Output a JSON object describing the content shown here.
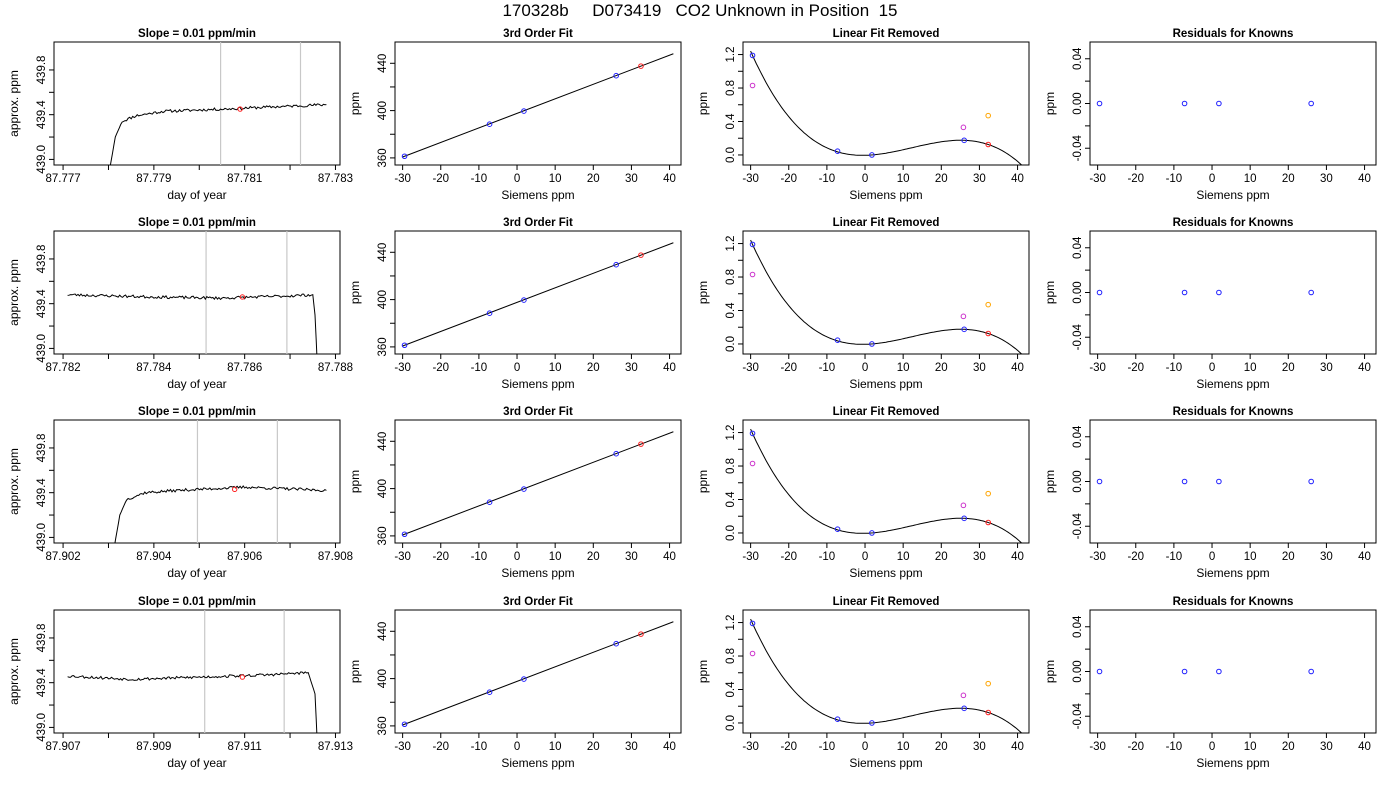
{
  "page_title": "170328b     D073419   CO2 Unknown in Position  15",
  "chart_data": [
    {
      "type": "line",
      "panel": "trace",
      "title": "Slope =  0.01  ppm/min",
      "xlabel": "day of year",
      "ylabel": "approx. ppm",
      "xlim": [
        87.7768,
        87.7831
      ],
      "ylim": [
        438.95,
        440.05
      ],
      "xticks": [
        87.777,
        87.779,
        87.781,
        87.783
      ],
      "xticks_minor": [
        87.778,
        87.78,
        87.782
      ],
      "yticks": [
        439.0,
        439.4,
        439.8
      ],
      "yticks_minor": [
        439.2,
        439.6
      ],
      "markers_x": [
        87.78047,
        87.78223
      ],
      "sample_point": {
        "x": 87.7809,
        "y": 439.45
      },
      "trace_key": [
        [
          87.778,
          438.85
        ],
        [
          87.77815,
          439.2
        ],
        [
          87.7783,
          439.34
        ],
        [
          87.7786,
          439.39
        ],
        [
          87.7792,
          439.43
        ],
        [
          87.7805,
          439.45
        ],
        [
          87.7828,
          439.49
        ]
      ],
      "trace_mode": "rise",
      "noise_seed": 11
    },
    {
      "type": "scatter",
      "panel": "fit",
      "title": "3rd Order Fit",
      "xlabel": "Siemens ppm",
      "ylabel": "ppm",
      "xlim": [
        -32,
        43
      ],
      "ylim": [
        354,
        458
      ],
      "xticks": [
        -30,
        -20,
        -10,
        0,
        10,
        20,
        30,
        40
      ],
      "yticks": [
        360,
        400,
        440
      ],
      "yticks_minor": [
        380,
        420
      ],
      "line_x": [
        -30,
        41
      ],
      "points": [
        {
          "x": -29.5,
          "y": 361.4,
          "color": "#2020ff"
        },
        {
          "x": -7.2,
          "y": 388.5,
          "color": "#2020ff"
        },
        {
          "x": 1.8,
          "y": 399.6,
          "color": "#2020ff"
        },
        {
          "x": 26,
          "y": 429.5,
          "color": "#2020ff"
        },
        {
          "x": 32.5,
          "y": 437.6,
          "color": "#ff2020"
        }
      ]
    },
    {
      "type": "scatter",
      "panel": "linrem",
      "title": "Linear Fit Removed",
      "xlabel": "Siemens ppm",
      "ylabel": "ppm",
      "xlim": [
        -32,
        43
      ],
      "ylim": [
        -0.12,
        1.35
      ],
      "xticks": [
        -30,
        -20,
        -10,
        0,
        10,
        20,
        30,
        40
      ],
      "yticks": [
        0.0,
        0.4,
        0.8,
        1.2
      ],
      "yticks_minor": [
        0.2,
        0.6,
        1.0
      ],
      "curve_x": [
        -30,
        41
      ],
      "points": [
        {
          "x": -29.5,
          "y": 1.19,
          "color": "#2020ff"
        },
        {
          "x": -29.5,
          "y": 0.83,
          "color": "#cc33cc"
        },
        {
          "x": -7.2,
          "y": 0.045,
          "color": "#2020ff"
        },
        {
          "x": 1.8,
          "y": 0.0,
          "color": "#2020ff"
        },
        {
          "x": 26,
          "y": 0.175,
          "color": "#2020ff"
        },
        {
          "x": 25.8,
          "y": 0.33,
          "color": "#cc33cc"
        },
        {
          "x": 32.3,
          "y": 0.47,
          "color": "#ffa500"
        },
        {
          "x": 32.3,
          "y": 0.125,
          "color": "#ff2020"
        }
      ]
    },
    {
      "type": "scatter",
      "panel": "resid",
      "title": "Residuals for Knowns",
      "xlabel": "Siemens ppm",
      "ylabel": "ppm",
      "xlim": [
        -32,
        43
      ],
      "ylim": [
        -0.055,
        0.055
      ],
      "xticks": [
        -30,
        -20,
        -10,
        0,
        10,
        20,
        30,
        40
      ],
      "yticks": [
        -0.04,
        0.0,
        0.04
      ],
      "yticks_minor": [
        -0.02,
        0.02
      ],
      "points": [
        {
          "x": -29.5,
          "y": 0.0,
          "color": "#2020ff"
        },
        {
          "x": -7.2,
          "y": 0.0,
          "color": "#2020ff"
        },
        {
          "x": 1.8,
          "y": 0.0,
          "color": "#2020ff"
        },
        {
          "x": 26,
          "y": 0.0,
          "color": "#2020ff"
        }
      ]
    },
    {
      "type": "line",
      "panel": "trace",
      "title": "Slope =  0.01  ppm/min",
      "xlabel": "day of year",
      "ylabel": "approx. ppm",
      "xlim": [
        87.7818,
        87.7881
      ],
      "ylim": [
        438.95,
        440.05
      ],
      "xticks": [
        87.782,
        87.784,
        87.786,
        87.788
      ],
      "xticks_minor": [
        87.783,
        87.785,
        87.787
      ],
      "yticks": [
        439.0,
        439.4,
        439.8
      ],
      "yticks_minor": [
        439.2,
        439.6
      ],
      "markers_x": [
        87.78515,
        87.78693
      ],
      "sample_point": {
        "x": 87.78595,
        "y": 439.46
      },
      "trace_key": [
        [
          87.7821,
          439.48
        ],
        [
          87.784,
          439.46
        ],
        [
          87.7855,
          439.45
        ],
        [
          87.787,
          439.47
        ],
        [
          87.7875,
          439.48
        ],
        [
          87.78755,
          439.3
        ],
        [
          87.7876,
          438.85
        ]
      ],
      "trace_mode": "flat",
      "noise_seed": 23
    },
    {
      "type": "scatter",
      "panel": "fit",
      "title": "3rd Order Fit",
      "xlabel": "Siemens ppm",
      "ylabel": "ppm",
      "xlim": [
        -32,
        43
      ],
      "ylim": [
        354,
        458
      ],
      "xticks": [
        -30,
        -20,
        -10,
        0,
        10,
        20,
        30,
        40
      ],
      "yticks": [
        360,
        400,
        440
      ],
      "yticks_minor": [
        380,
        420
      ],
      "line_x": [
        -30,
        41
      ],
      "points": [
        {
          "x": -29.5,
          "y": 361.4,
          "color": "#2020ff"
        },
        {
          "x": -7.2,
          "y": 388.5,
          "color": "#2020ff"
        },
        {
          "x": 1.8,
          "y": 399.6,
          "color": "#2020ff"
        },
        {
          "x": 26,
          "y": 429.5,
          "color": "#2020ff"
        },
        {
          "x": 32.5,
          "y": 437.6,
          "color": "#ff2020"
        }
      ]
    },
    {
      "type": "scatter",
      "panel": "linrem",
      "title": "Linear Fit Removed",
      "xlabel": "Siemens ppm",
      "ylabel": "ppm",
      "xlim": [
        -32,
        43
      ],
      "ylim": [
        -0.12,
        1.35
      ],
      "xticks": [
        -30,
        -20,
        -10,
        0,
        10,
        20,
        30,
        40
      ],
      "yticks": [
        0.0,
        0.4,
        0.8,
        1.2
      ],
      "yticks_minor": [
        0.2,
        0.6,
        1.0
      ],
      "curve_x": [
        -30,
        41
      ],
      "points": [
        {
          "x": -29.5,
          "y": 1.19,
          "color": "#2020ff"
        },
        {
          "x": -29.5,
          "y": 0.83,
          "color": "#cc33cc"
        },
        {
          "x": -7.2,
          "y": 0.045,
          "color": "#2020ff"
        },
        {
          "x": 1.8,
          "y": 0.0,
          "color": "#2020ff"
        },
        {
          "x": 26,
          "y": 0.175,
          "color": "#2020ff"
        },
        {
          "x": 25.8,
          "y": 0.33,
          "color": "#cc33cc"
        },
        {
          "x": 32.3,
          "y": 0.47,
          "color": "#ffa500"
        },
        {
          "x": 32.3,
          "y": 0.125,
          "color": "#ff2020"
        }
      ]
    },
    {
      "type": "scatter",
      "panel": "resid",
      "title": "Residuals for Knowns",
      "xlabel": "Siemens ppm",
      "ylabel": "ppm",
      "xlim": [
        -32,
        43
      ],
      "ylim": [
        -0.055,
        0.055
      ],
      "xticks": [
        -30,
        -20,
        -10,
        0,
        10,
        20,
        30,
        40
      ],
      "yticks": [
        -0.04,
        0.0,
        0.04
      ],
      "yticks_minor": [
        -0.02,
        0.02
      ],
      "points": [
        {
          "x": -29.5,
          "y": 0.0,
          "color": "#2020ff"
        },
        {
          "x": -7.2,
          "y": 0.0,
          "color": "#2020ff"
        },
        {
          "x": 1.8,
          "y": 0.0,
          "color": "#2020ff"
        },
        {
          "x": 26,
          "y": 0.0,
          "color": "#2020ff"
        }
      ]
    },
    {
      "type": "line",
      "panel": "trace",
      "title": "Slope =  0.01  ppm/min",
      "xlabel": "day of year",
      "ylabel": "approx. ppm",
      "xlim": [
        87.9018,
        87.9081
      ],
      "ylim": [
        438.95,
        440.05
      ],
      "xticks": [
        87.902,
        87.904,
        87.906,
        87.908
      ],
      "xticks_minor": [
        87.903,
        87.905,
        87.907
      ],
      "yticks": [
        439.0,
        439.4,
        439.8
      ],
      "yticks_minor": [
        439.2,
        439.6
      ],
      "markers_x": [
        87.90496,
        87.90672
      ],
      "sample_point": {
        "x": 87.90578,
        "y": 439.43
      },
      "trace_key": [
        [
          87.9031,
          438.85
        ],
        [
          87.90325,
          439.2
        ],
        [
          87.9034,
          439.34
        ],
        [
          87.9038,
          439.4
        ],
        [
          87.9045,
          439.42
        ],
        [
          87.906,
          439.45
        ],
        [
          87.9078,
          439.42
        ]
      ],
      "trace_mode": "rise",
      "noise_seed": 37
    },
    {
      "type": "scatter",
      "panel": "fit",
      "title": "3rd Order Fit",
      "xlabel": "Siemens ppm",
      "ylabel": "ppm",
      "xlim": [
        -32,
        43
      ],
      "ylim": [
        354,
        458
      ],
      "xticks": [
        -30,
        -20,
        -10,
        0,
        10,
        20,
        30,
        40
      ],
      "yticks": [
        360,
        400,
        440
      ],
      "yticks_minor": [
        380,
        420
      ],
      "line_x": [
        -30,
        41
      ],
      "points": [
        {
          "x": -29.5,
          "y": 361.4,
          "color": "#2020ff"
        },
        {
          "x": -7.2,
          "y": 388.5,
          "color": "#2020ff"
        },
        {
          "x": 1.8,
          "y": 399.6,
          "color": "#2020ff"
        },
        {
          "x": 26,
          "y": 429.5,
          "color": "#2020ff"
        },
        {
          "x": 32.5,
          "y": 437.6,
          "color": "#ff2020"
        }
      ]
    },
    {
      "type": "scatter",
      "panel": "linrem",
      "title": "Linear Fit Removed",
      "xlabel": "Siemens ppm",
      "ylabel": "ppm",
      "xlim": [
        -32,
        43
      ],
      "ylim": [
        -0.12,
        1.35
      ],
      "xticks": [
        -30,
        -20,
        -10,
        0,
        10,
        20,
        30,
        40
      ],
      "yticks": [
        0.0,
        0.4,
        0.8,
        1.2
      ],
      "yticks_minor": [
        0.2,
        0.6,
        1.0
      ],
      "curve_x": [
        -30,
        41
      ],
      "points": [
        {
          "x": -29.5,
          "y": 1.19,
          "color": "#2020ff"
        },
        {
          "x": -29.5,
          "y": 0.83,
          "color": "#cc33cc"
        },
        {
          "x": -7.2,
          "y": 0.045,
          "color": "#2020ff"
        },
        {
          "x": 1.8,
          "y": 0.0,
          "color": "#2020ff"
        },
        {
          "x": 26,
          "y": 0.175,
          "color": "#2020ff"
        },
        {
          "x": 25.8,
          "y": 0.33,
          "color": "#cc33cc"
        },
        {
          "x": 32.3,
          "y": 0.47,
          "color": "#ffa500"
        },
        {
          "x": 32.3,
          "y": 0.125,
          "color": "#ff2020"
        }
      ]
    },
    {
      "type": "scatter",
      "panel": "resid",
      "title": "Residuals for Knowns",
      "xlabel": "Siemens ppm",
      "ylabel": "ppm",
      "xlim": [
        -32,
        43
      ],
      "ylim": [
        -0.055,
        0.055
      ],
      "xticks": [
        -30,
        -20,
        -10,
        0,
        10,
        20,
        30,
        40
      ],
      "yticks": [
        -0.04,
        0.0,
        0.04
      ],
      "yticks_minor": [
        -0.02,
        0.02
      ],
      "points": [
        {
          "x": -29.5,
          "y": 0.0,
          "color": "#2020ff"
        },
        {
          "x": -7.2,
          "y": 0.0,
          "color": "#2020ff"
        },
        {
          "x": 1.8,
          "y": 0.0,
          "color": "#2020ff"
        },
        {
          "x": 26,
          "y": 0.0,
          "color": "#2020ff"
        }
      ]
    },
    {
      "type": "line",
      "panel": "trace",
      "title": "Slope =  0.01  ppm/min",
      "xlabel": "day of year",
      "ylabel": "approx. ppm",
      "xlim": [
        87.9068,
        87.9131
      ],
      "ylim": [
        438.95,
        440.05
      ],
      "xticks": [
        87.907,
        87.909,
        87.911,
        87.913
      ],
      "xticks_minor": [
        87.908,
        87.91,
        87.912
      ],
      "yticks": [
        439.0,
        439.4,
        439.8
      ],
      "yticks_minor": [
        439.2,
        439.6
      ],
      "markers_x": [
        87.91012,
        87.91187
      ],
      "sample_point": {
        "x": 87.91095,
        "y": 439.45
      },
      "trace_key": [
        [
          87.9071,
          439.46
        ],
        [
          87.9085,
          439.43
        ],
        [
          87.91,
          439.45
        ],
        [
          87.9115,
          439.47
        ],
        [
          87.9124,
          439.49
        ],
        [
          87.91255,
          439.3
        ],
        [
          87.9126,
          438.85
        ]
      ],
      "trace_mode": "flat",
      "noise_seed": 53
    },
    {
      "type": "scatter",
      "panel": "fit",
      "title": "3rd Order Fit",
      "xlabel": "Siemens ppm",
      "ylabel": "ppm",
      "xlim": [
        -32,
        43
      ],
      "ylim": [
        354,
        458
      ],
      "xticks": [
        -30,
        -20,
        -10,
        0,
        10,
        20,
        30,
        40
      ],
      "yticks": [
        360,
        400,
        440
      ],
      "yticks_minor": [
        380,
        420
      ],
      "line_x": [
        -30,
        41
      ],
      "points": [
        {
          "x": -29.5,
          "y": 361.4,
          "color": "#2020ff"
        },
        {
          "x": -7.2,
          "y": 388.5,
          "color": "#2020ff"
        },
        {
          "x": 1.8,
          "y": 399.6,
          "color": "#2020ff"
        },
        {
          "x": 26,
          "y": 429.5,
          "color": "#2020ff"
        },
        {
          "x": 32.5,
          "y": 437.6,
          "color": "#ff2020"
        }
      ]
    },
    {
      "type": "scatter",
      "panel": "linrem",
      "title": "Linear Fit Removed",
      "xlabel": "Siemens ppm",
      "ylabel": "ppm",
      "xlim": [
        -32,
        43
      ],
      "ylim": [
        -0.12,
        1.35
      ],
      "xticks": [
        -30,
        -20,
        -10,
        0,
        10,
        20,
        30,
        40
      ],
      "yticks": [
        0.0,
        0.4,
        0.8,
        1.2
      ],
      "yticks_minor": [
        0.2,
        0.6,
        1.0
      ],
      "curve_x": [
        -30,
        41
      ],
      "points": [
        {
          "x": -29.5,
          "y": 1.19,
          "color": "#2020ff"
        },
        {
          "x": -29.5,
          "y": 0.83,
          "color": "#cc33cc"
        },
        {
          "x": -7.2,
          "y": 0.045,
          "color": "#2020ff"
        },
        {
          "x": 1.8,
          "y": 0.0,
          "color": "#2020ff"
        },
        {
          "x": 26,
          "y": 0.175,
          "color": "#2020ff"
        },
        {
          "x": 25.8,
          "y": 0.33,
          "color": "#cc33cc"
        },
        {
          "x": 32.3,
          "y": 0.47,
          "color": "#ffa500"
        },
        {
          "x": 32.3,
          "y": 0.125,
          "color": "#ff2020"
        }
      ]
    },
    {
      "type": "scatter",
      "panel": "resid",
      "title": "Residuals for Knowns",
      "xlabel": "Siemens ppm",
      "ylabel": "ppm",
      "xlim": [
        -32,
        43
      ],
      "ylim": [
        -0.055,
        0.055
      ],
      "xticks": [
        -30,
        -20,
        -10,
        0,
        10,
        20,
        30,
        40
      ],
      "yticks": [
        -0.04,
        0.0,
        0.04
      ],
      "yticks_minor": [
        -0.02,
        0.02
      ],
      "points": [
        {
          "x": -29.5,
          "y": 0.0,
          "color": "#2020ff"
        },
        {
          "x": -7.2,
          "y": 0.0,
          "color": "#2020ff"
        },
        {
          "x": 1.8,
          "y": 0.0,
          "color": "#2020ff"
        },
        {
          "x": 26,
          "y": 0.0,
          "color": "#2020ff"
        }
      ]
    }
  ]
}
